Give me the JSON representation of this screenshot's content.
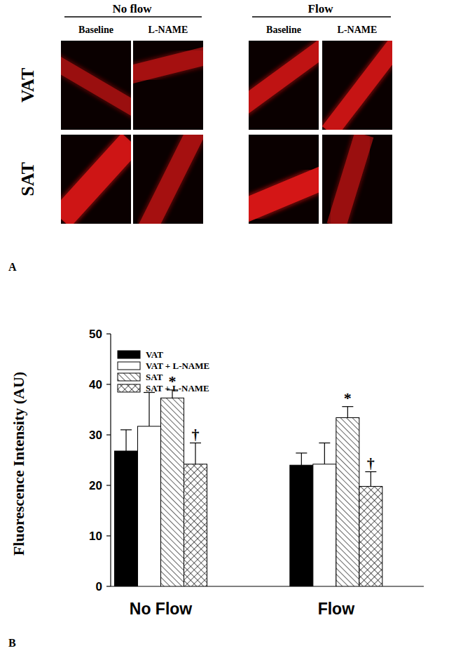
{
  "panel_labels": [
    "A",
    "B"
  ],
  "panel_a": {
    "column_groups": [
      {
        "label": "No flow",
        "columns": [
          "Baseline",
          "L-NAME"
        ]
      },
      {
        "label": "Flow",
        "columns": [
          "Baseline",
          "L-NAME"
        ]
      }
    ],
    "rows": [
      "VAT",
      "SAT"
    ]
  },
  "chart_data": {
    "type": "bar",
    "y_label": "Fluorescence Intensity (AU)",
    "categories": [
      "No Flow",
      "Flow"
    ],
    "ylim": [
      0,
      50
    ],
    "yticks": [
      0,
      10,
      20,
      30,
      40,
      50
    ],
    "legend": "upper left",
    "series": [
      {
        "name": "VAT",
        "color": "#000000",
        "values": [
          26.8,
          24.0
        ],
        "errors": [
          4.2,
          2.4
        ]
      },
      {
        "name": "VAT + L-NAME",
        "color": "#ffffff",
        "values": [
          31.7,
          24.2
        ],
        "errors": [
          6.7,
          4.2
        ]
      },
      {
        "name": "SAT",
        "color": "#ffffff",
        "values": [
          37.3,
          33.4
        ],
        "errors": [
          1.6,
          2.2
        ],
        "annotations": [
          "*",
          "*"
        ]
      },
      {
        "name": "SAT + L-NAME",
        "color": "#ffffff",
        "values": [
          24.2,
          19.8
        ],
        "errors": [
          4.2,
          2.9
        ],
        "annotations": [
          "†",
          "†"
        ]
      }
    ]
  }
}
